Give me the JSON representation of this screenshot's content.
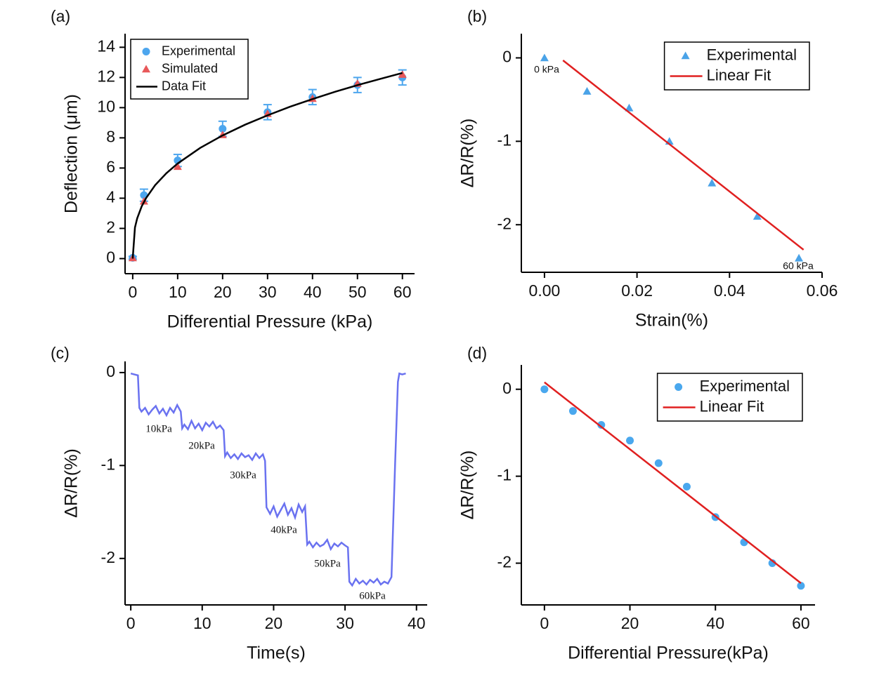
{
  "chart_data": [
    {
      "type": "scatter",
      "panel_label": "(a)",
      "x_label": "Differential Pressure (kPa)",
      "y_label": "Deflection (μm)",
      "xlim": [
        -1.7,
        62.7
      ],
      "ylim": [
        -1,
        14.9
      ],
      "xticks": [
        0,
        10,
        20,
        30,
        40,
        50,
        60
      ],
      "yticks": [
        0,
        2,
        4,
        6,
        8,
        10,
        12,
        14
      ],
      "legend": "upper left",
      "series": [
        {
          "name": "Experimental",
          "marker": "circle",
          "color": "#4da6ee",
          "x": [
            0,
            2.5,
            10,
            20,
            30,
            40,
            50,
            60
          ],
          "values": [
            0.05,
            4.2,
            6.5,
            8.6,
            9.7,
            10.7,
            11.5,
            12.0
          ],
          "errors": [
            0.1,
            0.4,
            0.4,
            0.5,
            0.5,
            0.5,
            0.5,
            0.5
          ]
        },
        {
          "name": "Simulated",
          "marker": "triangle",
          "color": "#e8585a",
          "x": [
            0,
            2.5,
            10,
            20,
            30,
            40,
            50,
            60
          ],
          "values": [
            0.05,
            3.8,
            6.1,
            8.2,
            9.6,
            10.6,
            11.6,
            12.2
          ]
        },
        {
          "name": "Data Fit",
          "marker": "line",
          "color": "#000000",
          "x": [
            0,
            0.5,
            1,
            2,
            3,
            5,
            7.5,
            10,
            15,
            20,
            25,
            30,
            35,
            40,
            45,
            50,
            55,
            60
          ],
          "values": [
            0,
            2.06,
            2.67,
            3.46,
            4.02,
            4.87,
            5.66,
            6.3,
            7.33,
            8.16,
            8.87,
            9.49,
            10.06,
            10.57,
            11.05,
            11.49,
            11.9,
            12.3
          ]
        }
      ]
    },
    {
      "type": "scatter",
      "panel_label": "(b)",
      "x_label": "Strain(%)",
      "y_label": "ΔR/R(%)",
      "xlim": [
        -0.005,
        0.06
      ],
      "ylim": [
        -2.57,
        0.29
      ],
      "xticks": [
        {
          "value": 0,
          "label": "0.00"
        },
        {
          "value": 0.02,
          "label": "0.02"
        },
        {
          "value": 0.04,
          "label": "0.04"
        },
        {
          "value": 0.06,
          "label": "0.06"
        }
      ],
      "yticks": [
        -2,
        -1,
        0
      ],
      "legend": "upper right",
      "annotations": [
        "0 kPa",
        "60 kPa"
      ],
      "series": [
        {
          "name": "Experimental",
          "marker": "triangle",
          "color": "#4aa3e8",
          "x": [
            0,
            0.0092,
            0.0183,
            0.027,
            0.0362,
            0.046,
            0.055
          ],
          "values": [
            0,
            -0.4,
            -0.6,
            -1.0,
            -1.5,
            -1.9,
            -2.4
          ]
        },
        {
          "name": "Linear Fit",
          "marker": "line",
          "color": "#e02020",
          "x": [
            0.004,
            0.056
          ],
          "values": [
            -0.03,
            -2.3
          ]
        }
      ]
    },
    {
      "type": "line",
      "panel_label": "(c)",
      "x_label": "Time(s)",
      "y_label": "ΔR/R(%)",
      "xlim": [
        -0.8,
        41.5
      ],
      "ylim": [
        -2.5,
        0.12
      ],
      "xticks": [
        0,
        10,
        20,
        30,
        40
      ],
      "yticks": [
        -2,
        -1,
        0
      ],
      "color": "#6a72f0",
      "annotations": [
        "10kPa",
        "20kPa",
        "30kPa",
        "40kPa",
        "50kPa",
        "60kPa"
      ],
      "x": [
        0,
        0.5,
        1,
        1.2,
        1.5,
        2,
        2.5,
        3,
        3.5,
        4,
        4.5,
        5,
        5.5,
        6,
        6.5,
        7,
        7.2,
        7.5,
        8,
        8.5,
        9,
        9.5,
        10,
        10.5,
        11,
        11.5,
        12,
        12.5,
        13,
        13.2,
        13.5,
        14,
        14.5,
        15,
        15.5,
        16,
        16.5,
        17,
        17.5,
        18,
        18.5,
        18.8,
        19,
        19.5,
        20,
        20.5,
        21,
        21.5,
        22,
        22.5,
        23,
        23.5,
        24,
        24.4,
        24.7,
        25,
        25.5,
        26,
        26.5,
        27,
        27.5,
        28,
        28.5,
        29,
        29.5,
        30,
        30.4,
        30.6,
        31,
        31.5,
        32,
        32.5,
        33,
        33.5,
        34,
        34.5,
        35,
        35.5,
        36,
        36.5,
        37,
        37.4,
        37.6,
        38,
        38.5
      ],
      "values": [
        -0.01,
        -0.02,
        -0.03,
        -0.38,
        -0.42,
        -0.38,
        -0.45,
        -0.4,
        -0.36,
        -0.44,
        -0.39,
        -0.46,
        -0.38,
        -0.43,
        -0.35,
        -0.42,
        -0.6,
        -0.56,
        -0.61,
        -0.52,
        -0.6,
        -0.55,
        -0.62,
        -0.54,
        -0.58,
        -0.53,
        -0.6,
        -0.57,
        -0.62,
        -0.9,
        -0.86,
        -0.92,
        -0.88,
        -0.93,
        -0.87,
        -0.91,
        -0.89,
        -0.94,
        -0.87,
        -0.92,
        -0.88,
        -0.95,
        -1.45,
        -1.52,
        -1.44,
        -1.55,
        -1.48,
        -1.41,
        -1.53,
        -1.46,
        -1.56,
        -1.42,
        -1.5,
        -1.44,
        -1.85,
        -1.82,
        -1.88,
        -1.83,
        -1.87,
        -1.85,
        -1.8,
        -1.9,
        -1.84,
        -1.87,
        -1.83,
        -1.86,
        -1.88,
        -2.25,
        -2.29,
        -2.22,
        -2.27,
        -2.24,
        -2.28,
        -2.23,
        -2.26,
        -2.22,
        -2.28,
        -2.25,
        -2.27,
        -2.2,
        -1.0,
        -0.1,
        -0.01,
        -0.02,
        -0.01
      ]
    },
    {
      "type": "scatter",
      "panel_label": "(d)",
      "x_label": "Differential Pressure(kPa)",
      "y_label": "ΔR/R(%)",
      "xlim": [
        -5.4,
        63.3
      ],
      "ylim": [
        -2.48,
        0.28
      ],
      "xticks": [
        0,
        20,
        40,
        60
      ],
      "yticks": [
        -2,
        -1,
        0
      ],
      "legend": "upper right",
      "series": [
        {
          "name": "Experimental",
          "marker": "circle",
          "color": "#4aa8ee",
          "x": [
            0,
            6.67,
            13.3,
            20,
            26.7,
            33.3,
            40,
            46.7,
            53.3,
            60
          ],
          "values": [
            0,
            -0.25,
            -0.41,
            -0.59,
            -0.85,
            -1.12,
            -1.47,
            -1.76,
            -2.0,
            -2.26
          ]
        },
        {
          "name": "Linear Fit",
          "marker": "line",
          "color": "#e02020",
          "x": [
            0,
            60
          ],
          "values": [
            0.08,
            -2.23
          ]
        }
      ]
    }
  ]
}
